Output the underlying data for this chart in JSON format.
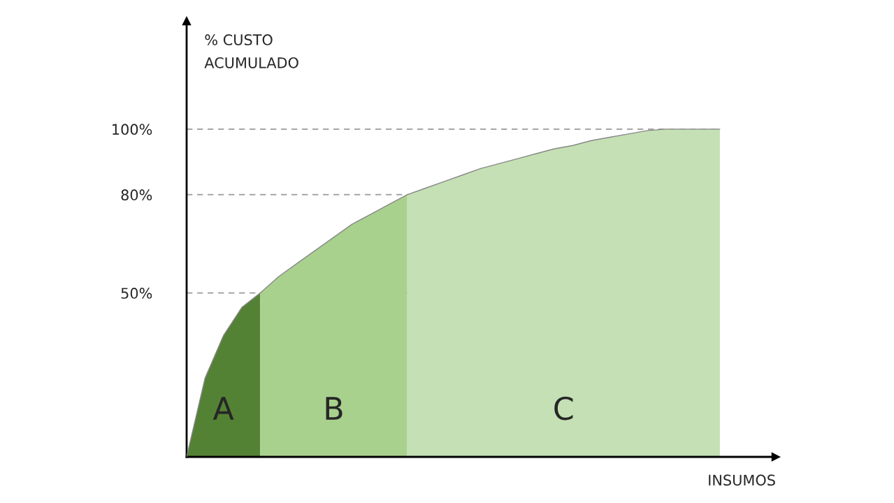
{
  "chart_data": {
    "type": "area",
    "ylabel": "% CUSTO\nACUMULADO",
    "xlabel": "INSUMOS",
    "categories": [
      null,
      null,
      null,
      null,
      null,
      null,
      null,
      null,
      null,
      null,
      null,
      null,
      null,
      null,
      null,
      null,
      null,
      null,
      null,
      null,
      null,
      null,
      null,
      null,
      null,
      null,
      null,
      null,
      null,
      null
    ],
    "series": [
      {
        "name": "A",
        "color": "#548235",
        "values": [
          0,
          24,
          37,
          45.6,
          50,
          null,
          null,
          null,
          null,
          null,
          null,
          null,
          null,
          null,
          null,
          null,
          null,
          null,
          null,
          null,
          null,
          null,
          null,
          null,
          null,
          null,
          null,
          null,
          null,
          null
        ]
      },
      {
        "name": "B",
        "color": "#a9d18e",
        "values": [
          null,
          null,
          null,
          null,
          50,
          55,
          59,
          63,
          67,
          71,
          74,
          77,
          80,
          null,
          null,
          null,
          null,
          null,
          null,
          null,
          null,
          null,
          null,
          null,
          null,
          null,
          null,
          null,
          null,
          null
        ]
      },
      {
        "name": "C",
        "color": "#c5e0b4",
        "values": [
          null,
          null,
          null,
          null,
          null,
          null,
          null,
          null,
          null,
          null,
          null,
          null,
          80,
          82,
          84,
          86,
          88,
          89.5,
          91,
          92.5,
          94,
          95,
          96.5,
          97.5,
          98.5,
          99.5,
          100,
          100,
          100,
          100
        ]
      }
    ],
    "ylim": [
      0,
      133
    ],
    "yticks": [
      {
        "value": 50,
        "label": "50%"
      },
      {
        "value": 80,
        "label": "80%"
      },
      {
        "value": 100,
        "label": "100%"
      }
    ],
    "ref_lines": [
      {
        "axis": "y",
        "value": 50,
        "color": "#999999",
        "line_style": "dashed"
      },
      {
        "axis": "y",
        "value": 80,
        "color": "#999999",
        "line_style": "dashed"
      },
      {
        "axis": "y",
        "value": 100,
        "color": "#999999",
        "line_style": "dashed"
      }
    ],
    "tick_labels": "y",
    "grid": false,
    "legend": false
  }
}
